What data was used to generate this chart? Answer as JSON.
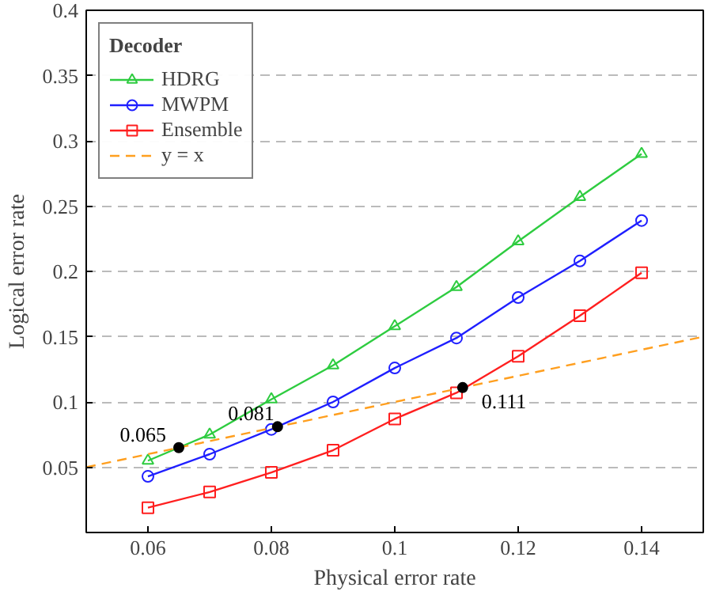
{
  "chart_data": {
    "type": "line",
    "xlabel": "Physical error rate",
    "ylabel": "Logical error rate",
    "legend_title": "Decoder",
    "xlim": [
      0.05,
      0.15
    ],
    "xticks": [
      0.06,
      0.08,
      0.1,
      0.12,
      0.14
    ],
    "ylim": [
      0,
      0.4
    ],
    "yticks": [
      0.05,
      0.1,
      0.15,
      0.2,
      0.25,
      0.3,
      0.35,
      0.4
    ],
    "grid": "y",
    "legend": "top left",
    "x": [
      0.06,
      0.07,
      0.08,
      0.09,
      0.1,
      0.11,
      0.12,
      0.13,
      0.14
    ],
    "series": [
      {
        "name": "HDRG",
        "color": "#2ecc40",
        "marker": "triangle",
        "values": [
          0.055,
          0.075,
          0.102,
          0.128,
          0.158,
          0.188,
          0.223,
          0.257,
          0.29
        ]
      },
      {
        "name": "MWPM",
        "color": "#1f1fff",
        "marker": "circle",
        "values": [
          0.043,
          0.06,
          0.079,
          0.1,
          0.126,
          0.149,
          0.18,
          0.208,
          0.239
        ]
      },
      {
        "name": "Ensemble",
        "color": "#ff1f1f",
        "marker": "square",
        "values": [
          0.019,
          0.031,
          0.046,
          0.063,
          0.087,
          0.107,
          0.135,
          0.166,
          0.199
        ]
      },
      {
        "name": "y = x",
        "color": "#ff9f1f",
        "marker": "none",
        "line_style": "dashed",
        "x": [
          0.05,
          0.15
        ],
        "values": [
          0.05,
          0.15
        ]
      },
      {
        "type": "scatter",
        "color": "#000000",
        "marker": "circle",
        "x": [
          0.065,
          0.081,
          0.111
        ],
        "values": [
          0.065,
          0.081,
          0.111
        ],
        "value_labels": [
          "0.065",
          "0.081",
          "0.111"
        ]
      }
    ]
  }
}
